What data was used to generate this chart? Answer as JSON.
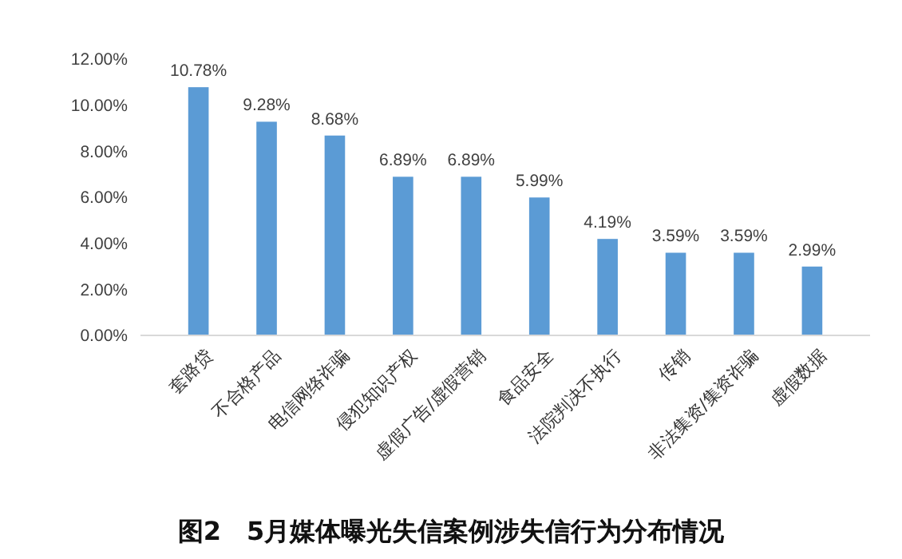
{
  "chart_data": {
    "type": "bar",
    "title": "图2　5月媒体曝光失信案例涉失信行为分布情况",
    "categories": [
      "套路贷",
      "不合格产品",
      "电信网络诈骗",
      "侵犯知识产权",
      "虚假广告/虚假营销",
      "食品安全",
      "法院判决不执行",
      "传销",
      "非法集资/集资诈骗",
      "虚假数据"
    ],
    "values": [
      10.78,
      9.28,
      8.68,
      6.89,
      6.89,
      5.99,
      4.19,
      3.59,
      3.59,
      2.99
    ],
    "value_labels": [
      "10.78%",
      "9.28%",
      "8.68%",
      "6.89%",
      "6.89%",
      "5.99%",
      "4.19%",
      "3.59%",
      "3.59%",
      "2.99%"
    ],
    "color": "#5b9bd5",
    "ylim": [
      0,
      12
    ],
    "yticks": [
      {
        "value": 0,
        "label": "0.00%"
      },
      {
        "value": 2,
        "label": "2.00%"
      },
      {
        "value": 4,
        "label": "4.00%"
      },
      {
        "value": 6,
        "label": "6.00%"
      },
      {
        "value": 8,
        "label": "8.00%"
      },
      {
        "value": 10,
        "label": "10.00%"
      },
      {
        "value": 12,
        "label": "12.00%"
      }
    ],
    "grid": false
  }
}
